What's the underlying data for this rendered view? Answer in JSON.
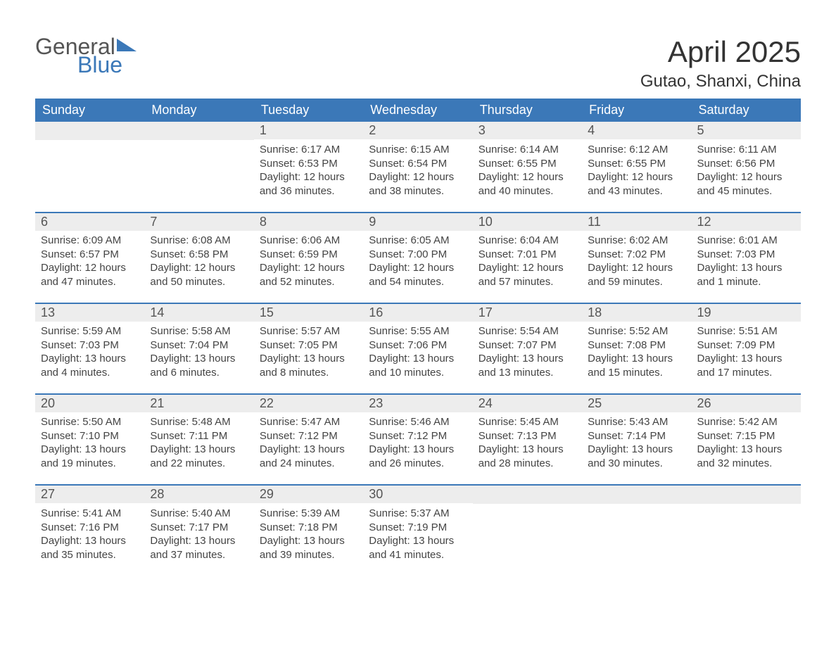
{
  "logo": {
    "text1": "General",
    "text2": "Blue"
  },
  "title": "April 2025",
  "location": "Gutao, Shanxi, China",
  "colors": {
    "header_bg": "#3b78b8",
    "header_text": "#ffffff",
    "daynum_bg": "#ededed",
    "rule": "#3b78b8",
    "body_text": "#444444"
  },
  "typography": {
    "title_fontsize": 42,
    "location_fontsize": 24,
    "header_fontsize": 18,
    "daynum_fontsize": 18,
    "body_fontsize": 15
  },
  "weekday_labels": [
    "Sunday",
    "Monday",
    "Tuesday",
    "Wednesday",
    "Thursday",
    "Friday",
    "Saturday"
  ],
  "weeks": [
    [
      {
        "day": "",
        "lines": []
      },
      {
        "day": "",
        "lines": []
      },
      {
        "day": "1",
        "lines": [
          "Sunrise: 6:17 AM",
          "Sunset: 6:53 PM",
          "Daylight: 12 hours",
          "and 36 minutes."
        ]
      },
      {
        "day": "2",
        "lines": [
          "Sunrise: 6:15 AM",
          "Sunset: 6:54 PM",
          "Daylight: 12 hours",
          "and 38 minutes."
        ]
      },
      {
        "day": "3",
        "lines": [
          "Sunrise: 6:14 AM",
          "Sunset: 6:55 PM",
          "Daylight: 12 hours",
          "and 40 minutes."
        ]
      },
      {
        "day": "4",
        "lines": [
          "Sunrise: 6:12 AM",
          "Sunset: 6:55 PM",
          "Daylight: 12 hours",
          "and 43 minutes."
        ]
      },
      {
        "day": "5",
        "lines": [
          "Sunrise: 6:11 AM",
          "Sunset: 6:56 PM",
          "Daylight: 12 hours",
          "and 45 minutes."
        ]
      }
    ],
    [
      {
        "day": "6",
        "lines": [
          "Sunrise: 6:09 AM",
          "Sunset: 6:57 PM",
          "Daylight: 12 hours",
          "and 47 minutes."
        ]
      },
      {
        "day": "7",
        "lines": [
          "Sunrise: 6:08 AM",
          "Sunset: 6:58 PM",
          "Daylight: 12 hours",
          "and 50 minutes."
        ]
      },
      {
        "day": "8",
        "lines": [
          "Sunrise: 6:06 AM",
          "Sunset: 6:59 PM",
          "Daylight: 12 hours",
          "and 52 minutes."
        ]
      },
      {
        "day": "9",
        "lines": [
          "Sunrise: 6:05 AM",
          "Sunset: 7:00 PM",
          "Daylight: 12 hours",
          "and 54 minutes."
        ]
      },
      {
        "day": "10",
        "lines": [
          "Sunrise: 6:04 AM",
          "Sunset: 7:01 PM",
          "Daylight: 12 hours",
          "and 57 minutes."
        ]
      },
      {
        "day": "11",
        "lines": [
          "Sunrise: 6:02 AM",
          "Sunset: 7:02 PM",
          "Daylight: 12 hours",
          "and 59 minutes."
        ]
      },
      {
        "day": "12",
        "lines": [
          "Sunrise: 6:01 AM",
          "Sunset: 7:03 PM",
          "Daylight: 13 hours",
          "and 1 minute."
        ]
      }
    ],
    [
      {
        "day": "13",
        "lines": [
          "Sunrise: 5:59 AM",
          "Sunset: 7:03 PM",
          "Daylight: 13 hours",
          "and 4 minutes."
        ]
      },
      {
        "day": "14",
        "lines": [
          "Sunrise: 5:58 AM",
          "Sunset: 7:04 PM",
          "Daylight: 13 hours",
          "and 6 minutes."
        ]
      },
      {
        "day": "15",
        "lines": [
          "Sunrise: 5:57 AM",
          "Sunset: 7:05 PM",
          "Daylight: 13 hours",
          "and 8 minutes."
        ]
      },
      {
        "day": "16",
        "lines": [
          "Sunrise: 5:55 AM",
          "Sunset: 7:06 PM",
          "Daylight: 13 hours",
          "and 10 minutes."
        ]
      },
      {
        "day": "17",
        "lines": [
          "Sunrise: 5:54 AM",
          "Sunset: 7:07 PM",
          "Daylight: 13 hours",
          "and 13 minutes."
        ]
      },
      {
        "day": "18",
        "lines": [
          "Sunrise: 5:52 AM",
          "Sunset: 7:08 PM",
          "Daylight: 13 hours",
          "and 15 minutes."
        ]
      },
      {
        "day": "19",
        "lines": [
          "Sunrise: 5:51 AM",
          "Sunset: 7:09 PM",
          "Daylight: 13 hours",
          "and 17 minutes."
        ]
      }
    ],
    [
      {
        "day": "20",
        "lines": [
          "Sunrise: 5:50 AM",
          "Sunset: 7:10 PM",
          "Daylight: 13 hours",
          "and 19 minutes."
        ]
      },
      {
        "day": "21",
        "lines": [
          "Sunrise: 5:48 AM",
          "Sunset: 7:11 PM",
          "Daylight: 13 hours",
          "and 22 minutes."
        ]
      },
      {
        "day": "22",
        "lines": [
          "Sunrise: 5:47 AM",
          "Sunset: 7:12 PM",
          "Daylight: 13 hours",
          "and 24 minutes."
        ]
      },
      {
        "day": "23",
        "lines": [
          "Sunrise: 5:46 AM",
          "Sunset: 7:12 PM",
          "Daylight: 13 hours",
          "and 26 minutes."
        ]
      },
      {
        "day": "24",
        "lines": [
          "Sunrise: 5:45 AM",
          "Sunset: 7:13 PM",
          "Daylight: 13 hours",
          "and 28 minutes."
        ]
      },
      {
        "day": "25",
        "lines": [
          "Sunrise: 5:43 AM",
          "Sunset: 7:14 PM",
          "Daylight: 13 hours",
          "and 30 minutes."
        ]
      },
      {
        "day": "26",
        "lines": [
          "Sunrise: 5:42 AM",
          "Sunset: 7:15 PM",
          "Daylight: 13 hours",
          "and 32 minutes."
        ]
      }
    ],
    [
      {
        "day": "27",
        "lines": [
          "Sunrise: 5:41 AM",
          "Sunset: 7:16 PM",
          "Daylight: 13 hours",
          "and 35 minutes."
        ]
      },
      {
        "day": "28",
        "lines": [
          "Sunrise: 5:40 AM",
          "Sunset: 7:17 PM",
          "Daylight: 13 hours",
          "and 37 minutes."
        ]
      },
      {
        "day": "29",
        "lines": [
          "Sunrise: 5:39 AM",
          "Sunset: 7:18 PM",
          "Daylight: 13 hours",
          "and 39 minutes."
        ]
      },
      {
        "day": "30",
        "lines": [
          "Sunrise: 5:37 AM",
          "Sunset: 7:19 PM",
          "Daylight: 13 hours",
          "and 41 minutes."
        ]
      },
      {
        "day": "",
        "lines": []
      },
      {
        "day": "",
        "lines": []
      },
      {
        "day": "",
        "lines": []
      }
    ]
  ]
}
